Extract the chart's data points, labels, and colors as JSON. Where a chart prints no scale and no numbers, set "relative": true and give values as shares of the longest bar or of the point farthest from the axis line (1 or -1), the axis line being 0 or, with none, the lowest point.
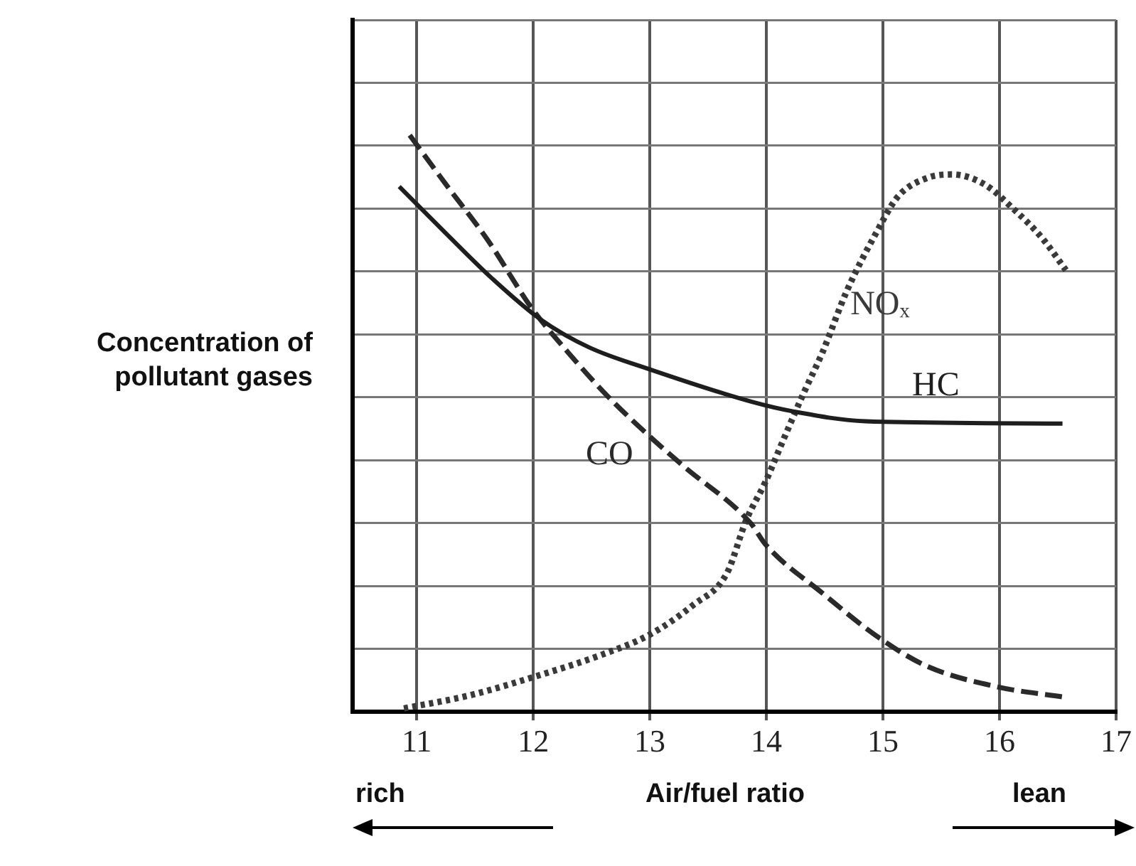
{
  "chart_data": {
    "type": "line",
    "relative": true,
    "xlabel": "Air/fuel ratio",
    "ylabel": "Concentration of pollutant gases",
    "xlim": [
      10.45,
      17
    ],
    "xticks": [
      11,
      12,
      13,
      14,
      15,
      16,
      17
    ],
    "grid": true,
    "legend": false,
    "marker": "none",
    "annotations": [
      "rich",
      "lean"
    ],
    "series": [
      {
        "name": "HC",
        "color": "#1e1e1e",
        "line_style": "solid",
        "x": [
          10.85,
          11.25,
          11.65,
          12.06,
          12.48,
          12.97,
          13.87,
          14.23,
          14.85,
          16.54
        ],
        "values": [
          0.911,
          0.83,
          0.751,
          0.681,
          0.632,
          0.596,
          0.538,
          0.521,
          0.504,
          0.5
        ]
      },
      {
        "name": "CO",
        "color": "#2a2a2a",
        "line_style": "dashed",
        "x": [
          10.94,
          11.25,
          11.62,
          11.98,
          12.3,
          12.64,
          12.97,
          13.29,
          13.87,
          13.99,
          14.48,
          14.97,
          15.38,
          15.99,
          16.54
        ],
        "values": [
          1,
          0.915,
          0.815,
          0.702,
          0.623,
          0.547,
          0.483,
          0.426,
          0.326,
          0.291,
          0.206,
          0.128,
          0.079,
          0.043,
          0.026
        ]
      },
      {
        "name": "NOₓ",
        "color": "#3a3a3a",
        "line_style": "dotted",
        "x": [
          10.89,
          11.44,
          12.06,
          12.6,
          13.0,
          13.37,
          13.66,
          13.83,
          13.99,
          14.15,
          14.32,
          14.48,
          14.69,
          14.94,
          15.13,
          15.38,
          15.59,
          15.87,
          16.12,
          16.36,
          16.57
        ],
        "values": [
          0.006,
          0.028,
          0.064,
          0.1,
          0.134,
          0.185,
          0.24,
          0.334,
          0.398,
          0.474,
          0.553,
          0.623,
          0.73,
          0.83,
          0.894,
          0.926,
          0.932,
          0.915,
          0.872,
          0.823,
          0.766
        ]
      }
    ]
  }
}
